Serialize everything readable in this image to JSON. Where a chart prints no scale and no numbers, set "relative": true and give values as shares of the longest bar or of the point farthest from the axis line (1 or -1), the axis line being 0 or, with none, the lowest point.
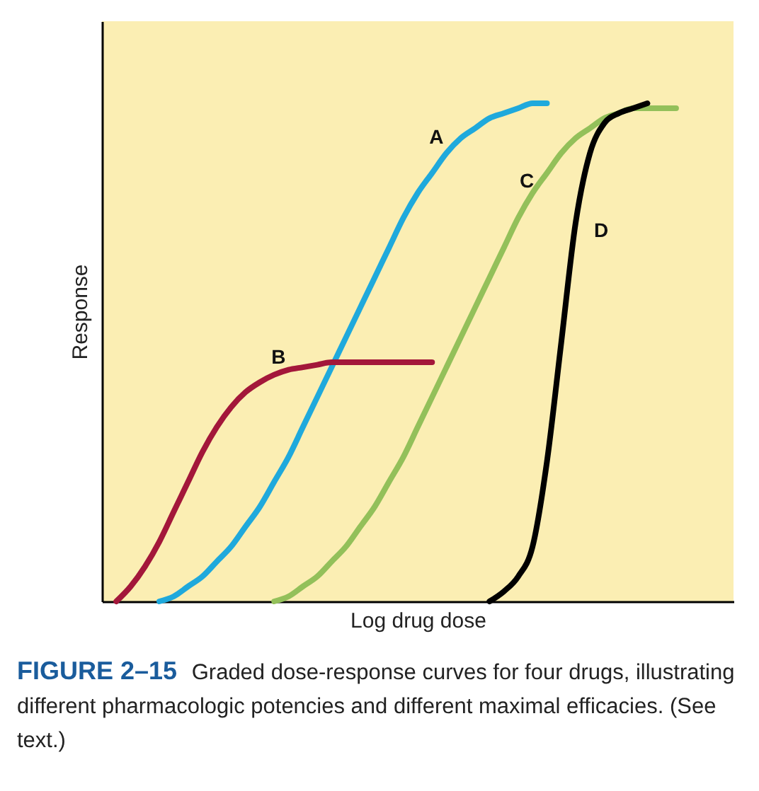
{
  "chart_data": {
    "type": "line",
    "relative": true,
    "xlabel": "Log drug dose",
    "ylabel": "Response",
    "grid": false,
    "marker": "none",
    "line_style": "solid",
    "categories": [
      null,
      null,
      null,
      null,
      null,
      null,
      null,
      null,
      null,
      null,
      null,
      null,
      null,
      null,
      null,
      null,
      null,
      null,
      null,
      null,
      null,
      null,
      null,
      null,
      null,
      null,
      null,
      null,
      null,
      null,
      null,
      null,
      null,
      null,
      null,
      null,
      null,
      null,
      null,
      null,
      null,
      null,
      null,
      null,
      null
    ],
    "series": [
      {
        "name": "A",
        "color": "#1fa9dc",
        "values": [
          null,
          null,
          null,
          null,
          0.0,
          0.01,
          0.03,
          0.05,
          0.08,
          0.11,
          0.15,
          0.19,
          0.24,
          0.29,
          0.35,
          0.41,
          0.47,
          0.53,
          0.59,
          0.65,
          0.71,
          0.77,
          0.82,
          0.86,
          0.9,
          0.93,
          0.95,
          0.97,
          0.98,
          0.99,
          1.0,
          1.0,
          null,
          null,
          null,
          null,
          null,
          null,
          null,
          null,
          null,
          null,
          null,
          null,
          null
        ]
      },
      {
        "name": "B",
        "color": "#a3173a",
        "values": [
          null,
          0.0,
          0.03,
          0.07,
          0.12,
          0.18,
          0.24,
          0.3,
          0.35,
          0.39,
          0.42,
          0.44,
          0.455,
          0.465,
          0.47,
          0.475,
          0.48,
          0.48,
          0.48,
          0.48,
          0.48,
          0.48,
          0.48,
          0.48,
          null,
          null,
          null,
          null,
          null,
          null,
          null,
          null,
          null,
          null,
          null,
          null,
          null,
          null,
          null,
          null,
          null,
          null,
          null,
          null,
          null
        ]
      },
      {
        "name": "C",
        "color": "#93c05a",
        "values": [
          null,
          null,
          null,
          null,
          null,
          null,
          null,
          null,
          null,
          null,
          null,
          null,
          0.0,
          0.01,
          0.03,
          0.05,
          0.08,
          0.11,
          0.15,
          0.19,
          0.24,
          0.29,
          0.35,
          0.41,
          0.47,
          0.53,
          0.59,
          0.65,
          0.71,
          0.77,
          0.82,
          0.86,
          0.9,
          0.93,
          0.95,
          0.97,
          0.98,
          0.99,
          0.99,
          0.99,
          0.99,
          null,
          null,
          null,
          null
        ]
      },
      {
        "name": "D",
        "color": "#000000",
        "values": [
          null,
          null,
          null,
          null,
          null,
          null,
          null,
          null,
          null,
          null,
          null,
          null,
          null,
          null,
          null,
          null,
          null,
          null,
          null,
          null,
          null,
          null,
          null,
          null,
          null,
          null,
          null,
          0.0,
          0.02,
          0.05,
          0.11,
          0.28,
          0.52,
          0.76,
          0.9,
          0.96,
          0.98,
          0.99,
          1.0,
          null,
          null,
          null,
          null,
          null,
          null
        ]
      }
    ],
    "annotations": [
      "FIGURE 2–15",
      "Graded dose-response curves for four drugs, illustrating different pharmacologic potencies and different maximal efficacies. (See text.)"
    ]
  }
}
